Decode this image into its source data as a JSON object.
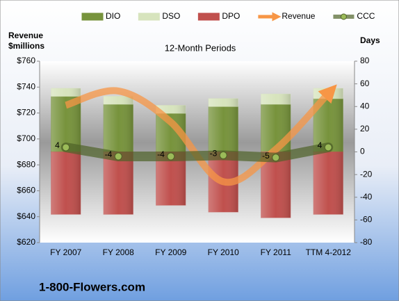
{
  "chart_data": {
    "type": "bar",
    "stacked": true,
    "title": "12-Month Periods",
    "y_label": [
      "Revenue",
      "$millions"
    ],
    "y2_label": "Days",
    "footer": "1-800-Flowers.com",
    "categories": [
      "FY 2007",
      "FY 2008",
      "FY 2009",
      "FY 2010",
      "FY 2011",
      "TTM 4-2012"
    ],
    "ylim": [
      620,
      760
    ],
    "yticks": [
      {
        "value": 620,
        "label": "$620"
      },
      {
        "value": 640,
        "label": "$640"
      },
      {
        "value": 660,
        "label": "$660"
      },
      {
        "value": 680,
        "label": "$680"
      },
      {
        "value": 700,
        "label": "$700"
      },
      {
        "value": 720,
        "label": "$720"
      },
      {
        "value": 740,
        "label": "$740"
      },
      {
        "value": 760,
        "label": "$760"
      }
    ],
    "y2lim": [
      -80,
      80
    ],
    "y2ticks": [
      -80,
      -60,
      -40,
      -20,
      0,
      20,
      40,
      60,
      80
    ],
    "legend": "top",
    "series": [
      {
        "name": "DIO",
        "type": "bar",
        "axis": "y2",
        "color": "#77933c",
        "values": [
          49,
          42,
          34,
          40,
          42,
          47
        ]
      },
      {
        "name": "DSO",
        "type": "bar",
        "axis": "y2",
        "color": "#d7e4bd",
        "values": [
          7,
          7,
          7,
          7,
          9,
          9
        ]
      },
      {
        "name": "DPO",
        "type": "bar",
        "axis": "y2",
        "color": "#c0504d",
        "values": [
          -55,
          -55,
          -47,
          -53,
          -58,
          -55
        ]
      },
      {
        "name": "Revenue",
        "type": "line",
        "axis": "y",
        "smooth": true,
        "arrow": true,
        "color": "#f79646",
        "values": [
          726,
          737,
          713,
          667,
          692,
          735
        ]
      },
      {
        "name": "CCC",
        "type": "line",
        "axis": "y2",
        "data_labels": true,
        "color": "#4f6228",
        "values": [
          4,
          -4,
          -4,
          -3,
          -5,
          4
        ]
      }
    ]
  }
}
